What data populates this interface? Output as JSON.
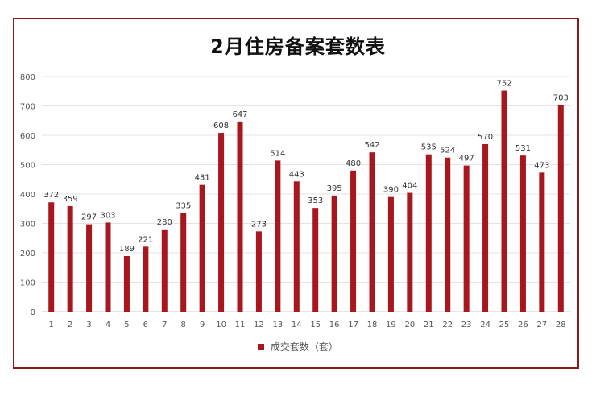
{
  "chart_data": {
    "type": "bar",
    "title": "2月住房备案套数表",
    "categories": [
      "1",
      "2",
      "3",
      "4",
      "5",
      "6",
      "7",
      "8",
      "9",
      "10",
      "11",
      "12",
      "13",
      "14",
      "15",
      "16",
      "17",
      "18",
      "19",
      "20",
      "21",
      "22",
      "23",
      "24",
      "25",
      "26",
      "27",
      "28"
    ],
    "series": [
      {
        "name": "成交套数（套）",
        "values": [
          372,
          359,
          297,
          303,
          189,
          221,
          280,
          335,
          431,
          608,
          647,
          273,
          514,
          443,
          353,
          395,
          480,
          542,
          390,
          404,
          535,
          524,
          497,
          570,
          752,
          531,
          473,
          703
        ],
        "color": "#a8161e"
      }
    ],
    "ylim": [
      0,
      800
    ],
    "yticks": [
      0,
      100,
      200,
      300,
      400,
      500,
      600,
      700,
      800
    ],
    "grid": true,
    "data_labels": true,
    "legend_position": "bottom"
  }
}
